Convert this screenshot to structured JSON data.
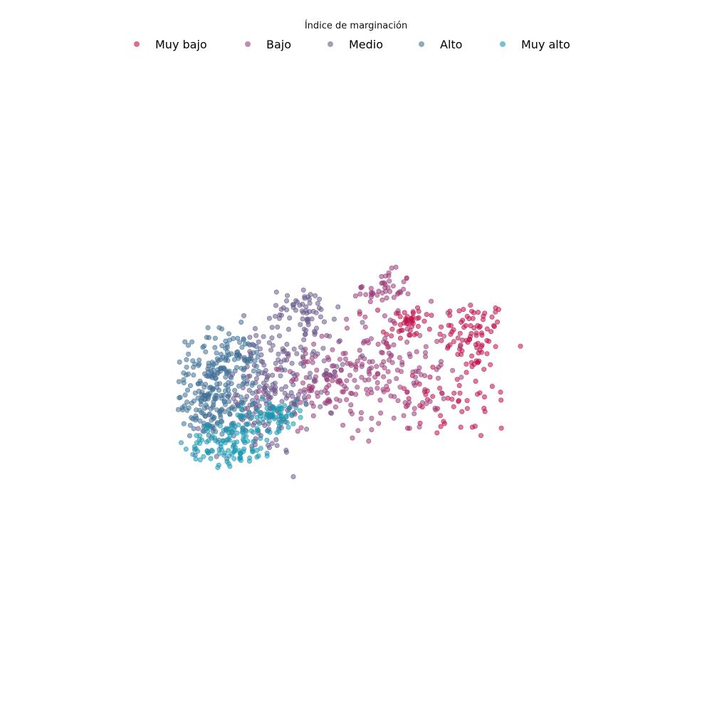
{
  "chart_data": {
    "type": "scatter",
    "title": "",
    "xlabel": "",
    "ylabel": "",
    "axes_visible": false,
    "grid": false,
    "legend": {
      "title": "Índice de marginación",
      "placement": "top-center",
      "columns": 5
    },
    "xlim": [
      0,
      1
    ],
    "ylim": [
      0,
      1
    ],
    "point_opacity": 0.55,
    "series": [
      {
        "name": "Muy bajo",
        "color": "#c0104a",
        "clusters": [
          {
            "cx": 0.72,
            "cy": 0.48,
            "rx": 0.07,
            "ry": 0.09,
            "n": 80
          },
          {
            "cx": 0.565,
            "cy": 0.535,
            "rx": 0.05,
            "ry": 0.03,
            "n": 25
          },
          {
            "cx": 0.545,
            "cy": 0.49,
            "rx": 0.05,
            "ry": 0.05,
            "n": 25
          },
          {
            "cx": 0.68,
            "cy": 0.28,
            "rx": 0.13,
            "ry": 0.12,
            "n": 60
          }
        ]
      },
      {
        "name": "Bajo",
        "color": "#9b3d7a",
        "clusters": [
          {
            "cx": 0.5,
            "cy": 0.62,
            "rx": 0.06,
            "ry": 0.05,
            "n": 45
          },
          {
            "cx": 0.52,
            "cy": 0.36,
            "rx": 0.12,
            "ry": 0.16,
            "n": 130
          },
          {
            "cx": 0.36,
            "cy": 0.32,
            "rx": 0.12,
            "ry": 0.1,
            "n": 120
          }
        ]
      },
      {
        "name": "Medio",
        "color": "#6a5a8c",
        "clusters": [
          {
            "cx": 0.31,
            "cy": 0.56,
            "rx": 0.07,
            "ry": 0.05,
            "n": 45
          },
          {
            "cx": 0.27,
            "cy": 0.42,
            "rx": 0.1,
            "ry": 0.12,
            "n": 100
          },
          {
            "cx": 0.2,
            "cy": 0.24,
            "rx": 0.1,
            "ry": 0.12,
            "n": 130
          }
        ]
      },
      {
        "name": "Alto",
        "color": "#3f7196",
        "clusters": [
          {
            "cx": 0.075,
            "cy": 0.27,
            "rx": 0.08,
            "ry": 0.12,
            "n": 190
          },
          {
            "cx": 0.13,
            "cy": 0.4,
            "rx": 0.08,
            "ry": 0.08,
            "n": 90
          }
        ]
      },
      {
        "name": "Muy alto",
        "color": "#1798b0",
        "clusters": [
          {
            "cx": 0.13,
            "cy": 0.13,
            "rx": 0.09,
            "ry": 0.06,
            "n": 110
          },
          {
            "cx": 0.23,
            "cy": 0.22,
            "rx": 0.07,
            "ry": 0.04,
            "n": 70
          }
        ]
      }
    ]
  }
}
